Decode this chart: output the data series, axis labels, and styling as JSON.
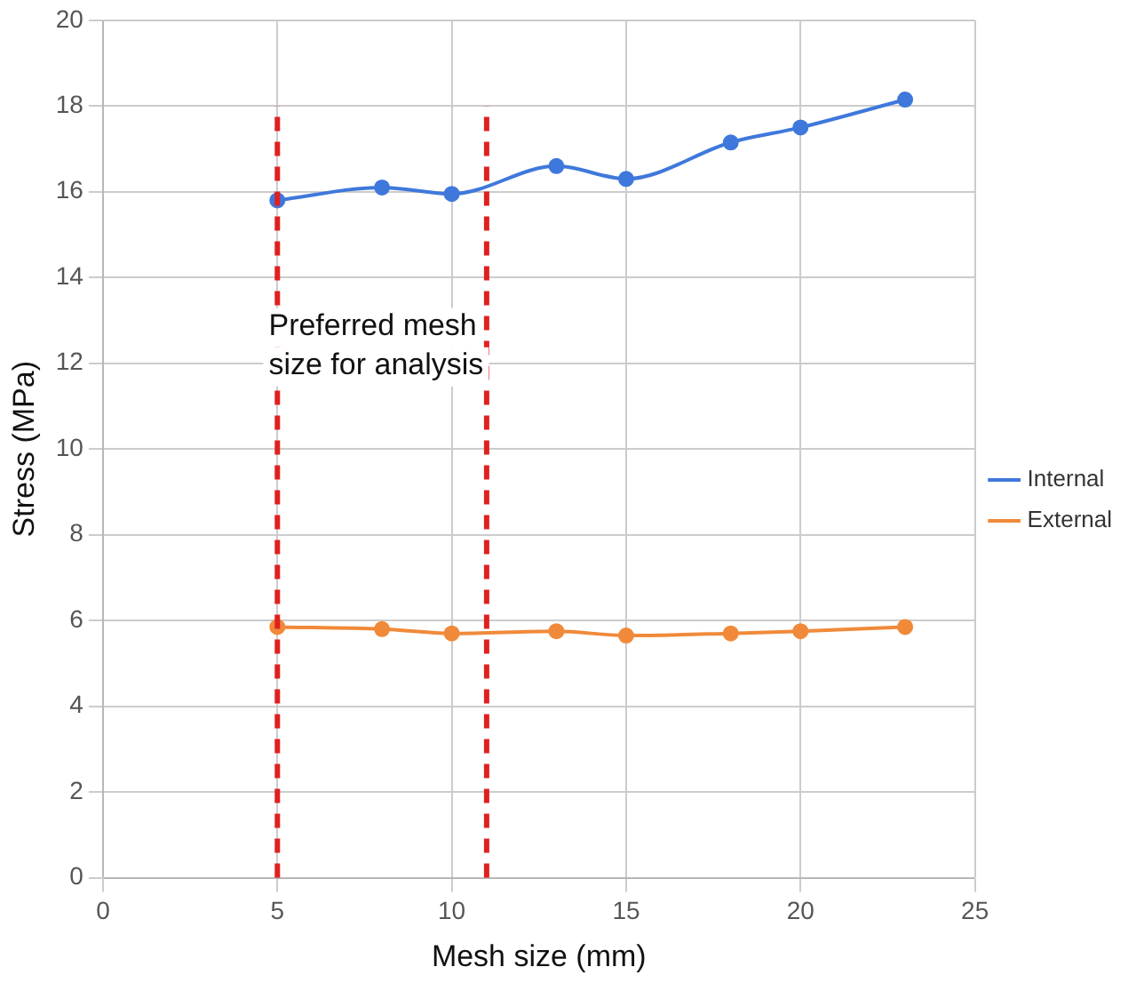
{
  "chart_data": {
    "type": "line",
    "xlabel": "Mesh size (mm)",
    "ylabel": "Stress (MPa)",
    "xlim": [
      0,
      25
    ],
    "xticks": [
      0,
      5,
      10,
      15,
      20,
      25
    ],
    "ylim": [
      0,
      20
    ],
    "yticks": [
      0,
      2,
      4,
      6,
      8,
      10,
      12,
      14,
      16,
      18,
      20
    ],
    "grid": true,
    "legend": "right",
    "marker": "circle",
    "line_style": "solid",
    "series": [
      {
        "name": "Internal",
        "color": "#3f78dc",
        "x": [
          5,
          8,
          10,
          13,
          15,
          18,
          20,
          23
        ],
        "values": [
          15.8,
          16.1,
          15.95,
          16.6,
          16.3,
          17.15,
          17.5,
          18.15
        ]
      },
      {
        "name": "External",
        "color": "#f08a3a",
        "x": [
          5,
          8,
          10,
          13,
          15,
          18,
          20,
          23
        ],
        "values": [
          5.85,
          5.8,
          5.7,
          5.75,
          5.65,
          5.7,
          5.75,
          5.85
        ]
      }
    ],
    "ref_lines": [
      {
        "axis": "x",
        "value": 5,
        "color": "#e02020",
        "line_style": "dashed"
      },
      {
        "axis": "x",
        "value": 11,
        "color": "#e02020",
        "line_style": "dashed"
      }
    ],
    "annotations": [
      "Preferred mesh size for analysis"
    ]
  }
}
